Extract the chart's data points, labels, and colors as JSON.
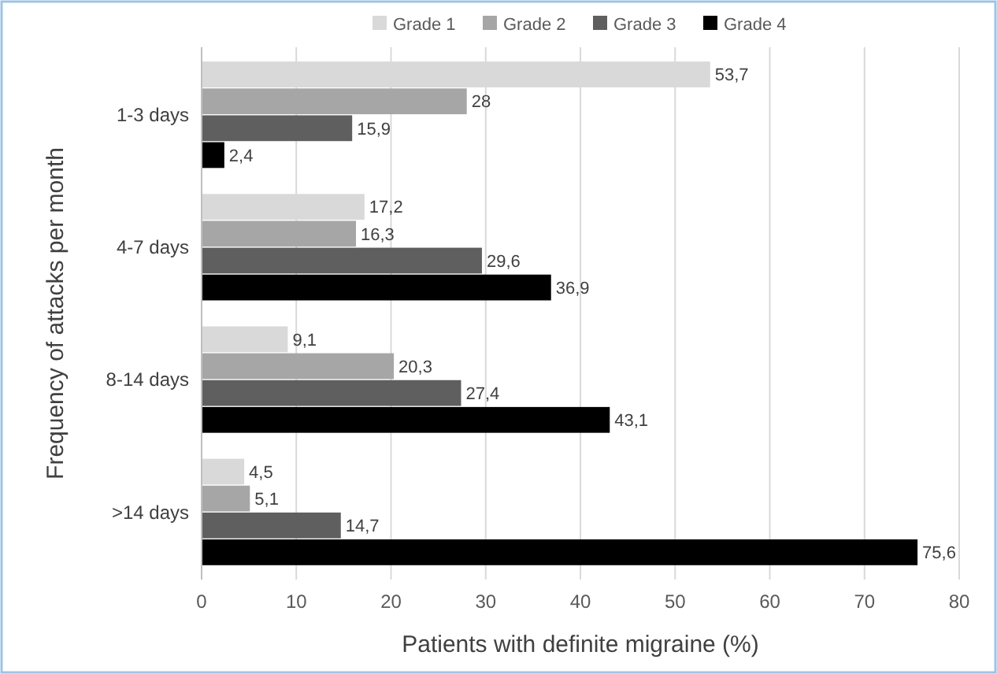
{
  "chart_data": {
    "type": "bar",
    "orientation": "horizontal",
    "xlabel": "Patients with definite migraine (%)",
    "ylabel": "Frequency of attacks per month",
    "categories": [
      "1-3 days",
      "4-7 days",
      "8-14 days",
      ">14 days"
    ],
    "series": [
      {
        "name": "Grade 1",
        "color": "#d9d9d9",
        "values": [
          53.7,
          17.2,
          9.1,
          4.5
        ],
        "value_labels": [
          "53,7",
          "17,2",
          "9,1",
          "4,5"
        ]
      },
      {
        "name": "Grade 2",
        "color": "#a6a6a6",
        "values": [
          28,
          16.3,
          20.3,
          5.1
        ],
        "value_labels": [
          "28",
          "16,3",
          "20,3",
          "5,1"
        ]
      },
      {
        "name": "Grade 3",
        "color": "#5f5f5f",
        "values": [
          15.9,
          29.6,
          27.4,
          14.7
        ],
        "value_labels": [
          "15,9",
          "29,6",
          "27,4",
          "14,7"
        ]
      },
      {
        "name": "Grade 4",
        "color": "#000000",
        "values": [
          2.4,
          36.9,
          43.1,
          75.6
        ],
        "value_labels": [
          "2,4",
          "36,9",
          "43,1",
          "75,6"
        ]
      }
    ],
    "xlim": [
      0,
      80
    ],
    "xticks": [
      0,
      10,
      20,
      30,
      40,
      50,
      60,
      70,
      80
    ],
    "grid": "x",
    "legend": "top"
  }
}
